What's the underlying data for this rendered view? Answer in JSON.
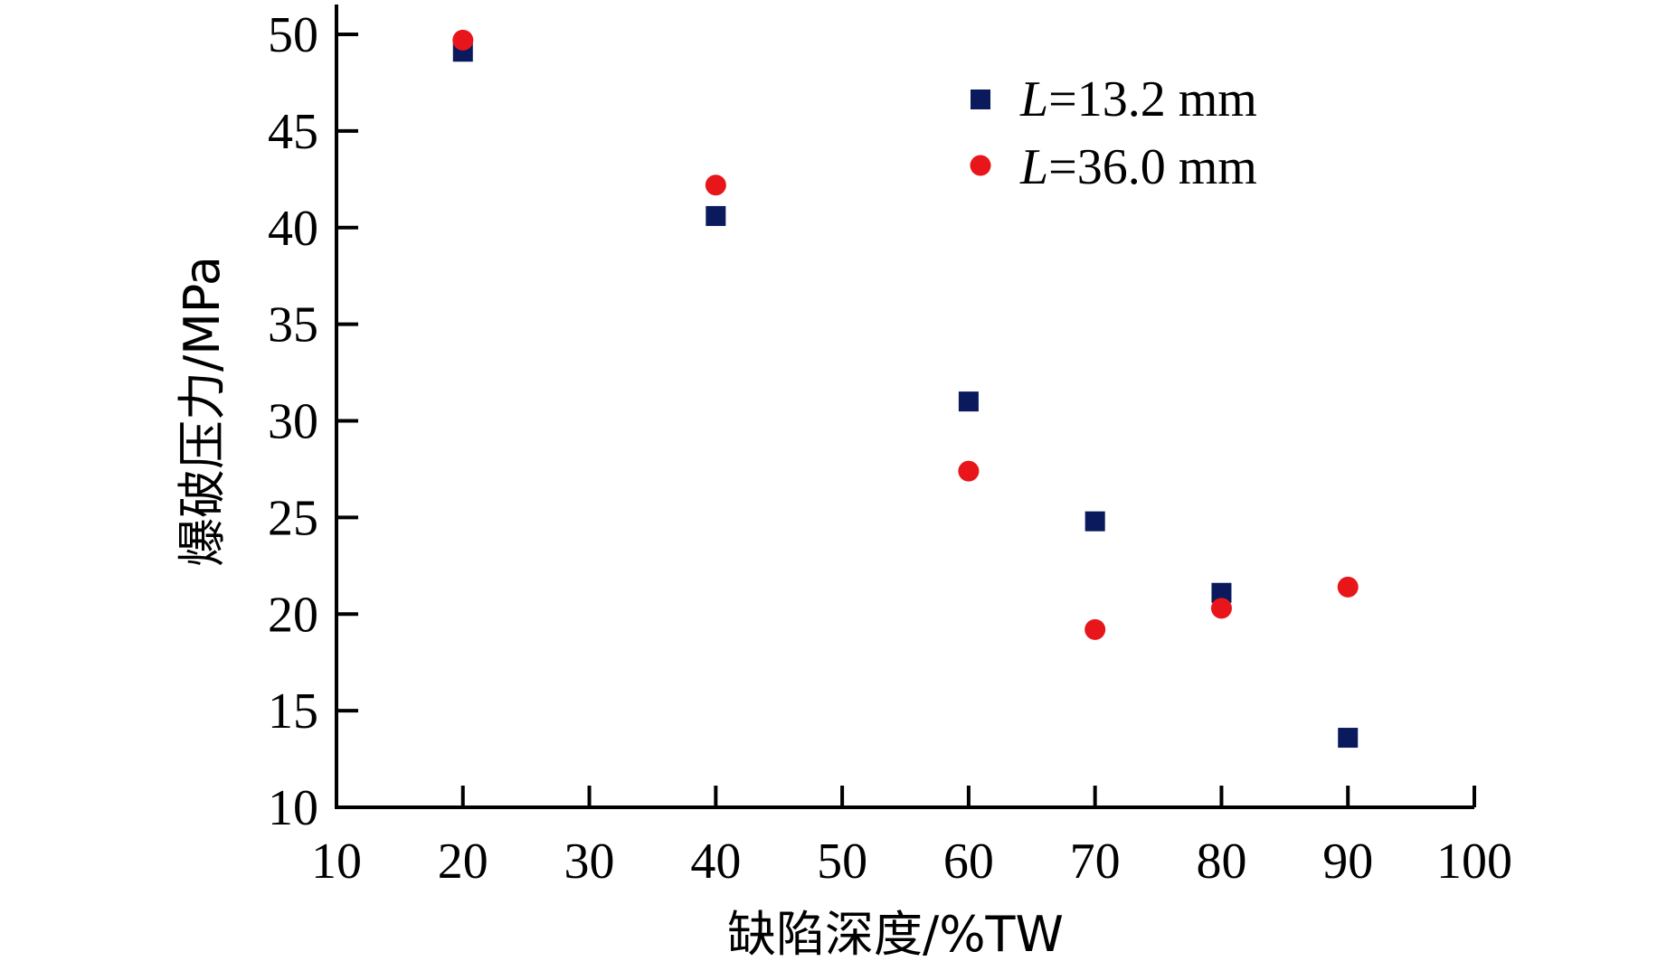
{
  "chart_data": {
    "type": "scatter",
    "xlabel": "缺陷深度/%TW",
    "ylabel": "爆破压力/MPa",
    "xlim": [
      10,
      100
    ],
    "ylim": [
      10,
      52
    ],
    "xticks": [
      10,
      20,
      30,
      40,
      50,
      60,
      70,
      80,
      90,
      100
    ],
    "yticks": [
      10,
      15,
      20,
      25,
      30,
      35,
      40,
      45,
      50
    ],
    "grid": false,
    "legend_position": "top-right",
    "series": [
      {
        "name_prefix": "L",
        "name_suffix": "=13.2 mm",
        "marker": "square",
        "color": "#0a1a5c",
        "x": [
          20,
          40,
          60,
          70,
          80,
          90
        ],
        "y": [
          49.1,
          40.6,
          31.0,
          24.8,
          21.1,
          13.6
        ]
      },
      {
        "name_prefix": "L",
        "name_suffix": "=36.0 mm",
        "marker": "circle",
        "color": "#e8161b",
        "x": [
          20,
          40,
          60,
          70,
          80,
          90
        ],
        "y": [
          49.7,
          42.2,
          27.4,
          19.2,
          20.3,
          21.4
        ]
      }
    ]
  }
}
